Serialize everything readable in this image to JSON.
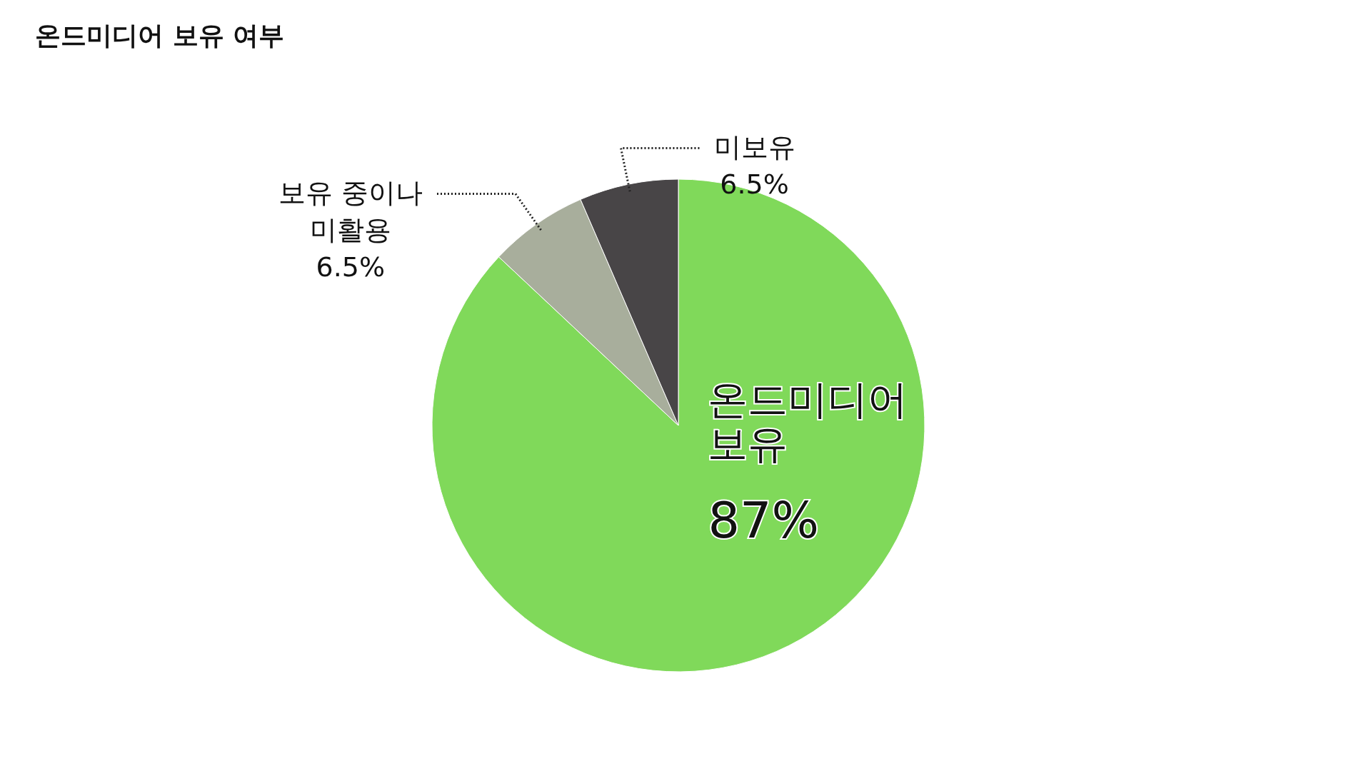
{
  "chart_data": {
    "type": "pie",
    "title": "온드미디어 보유 여부",
    "categories": [
      "온드미디어 보유",
      "보유 중이나 미활용",
      "미보유"
    ],
    "values": [
      87,
      6.5,
      6.5
    ],
    "colors": [
      "#80d95a",
      "#a8ae9c",
      "#484547"
    ],
    "value_labels": [
      "87%",
      "6.5%",
      "6.5%"
    ]
  }
}
